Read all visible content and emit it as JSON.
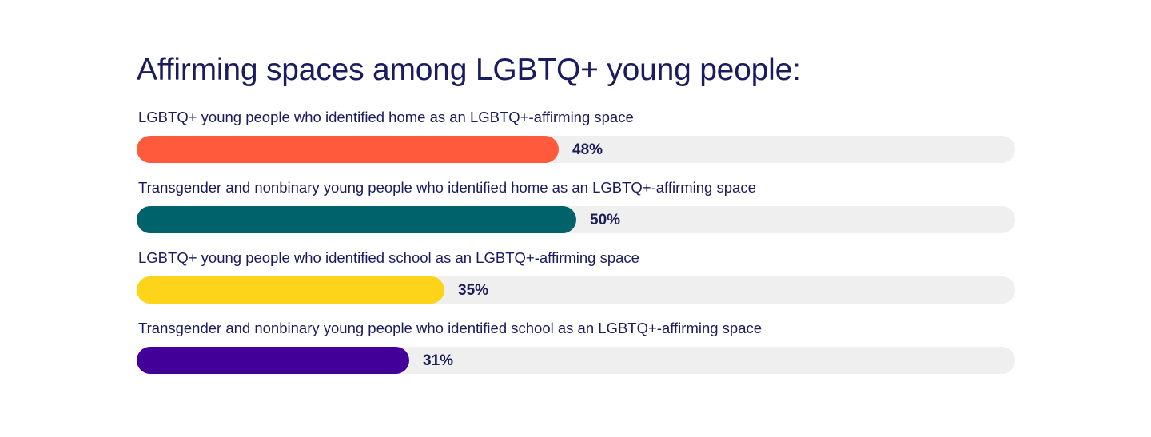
{
  "chart_data": {
    "type": "bar",
    "title": "Affirming spaces among LGBTQ+ young people:",
    "orientation": "horizontal",
    "xlim": [
      0,
      100
    ],
    "unit": "%",
    "categories": [
      "LGBTQ+ young people who identified home as an LGBTQ+-affirming space",
      "Transgender and nonbinary young people who identified home as an LGBTQ+-affirming space",
      "LGBTQ+ young people who identified school as an LGBTQ+-affirming space",
      "Transgender and nonbinary young people who identified school as an LGBTQ+-affirming space"
    ],
    "values": [
      48,
      50,
      35,
      31
    ],
    "value_labels": [
      "48%",
      "50%",
      "35%",
      "31%"
    ],
    "colors": [
      "#ff5a3c",
      "#00636b",
      "#fdd419",
      "#420099"
    ],
    "track_color": "#efefef",
    "grid": false,
    "legend": "none"
  }
}
